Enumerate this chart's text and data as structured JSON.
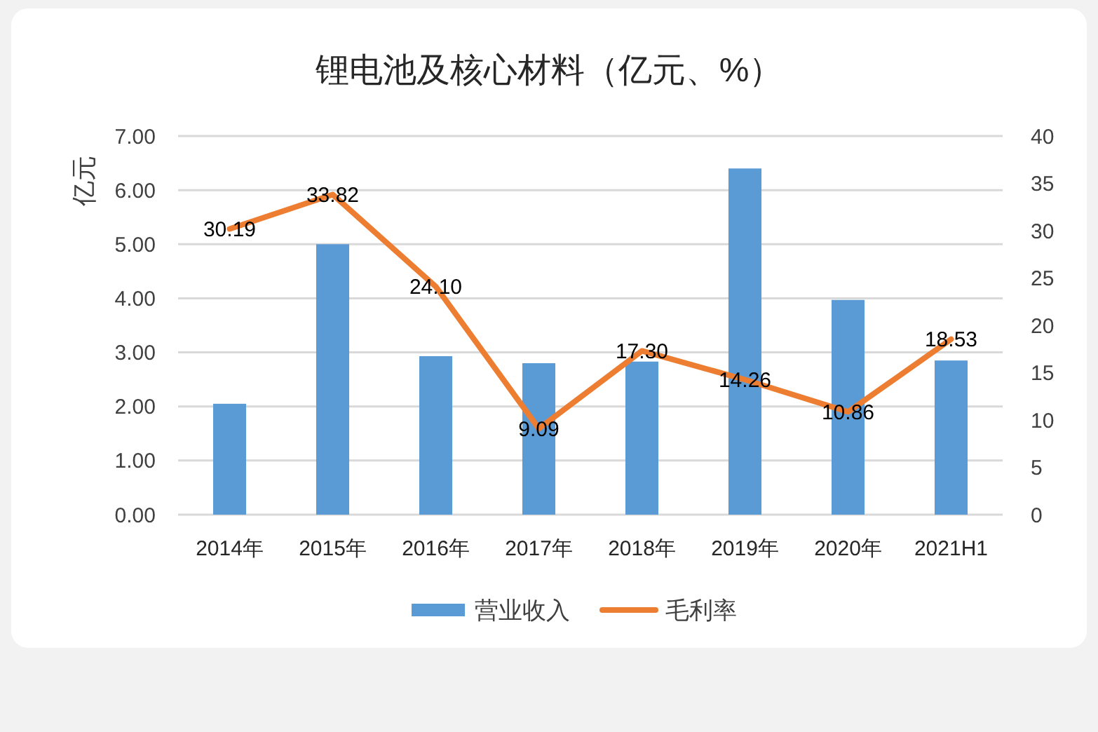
{
  "chart_data": {
    "type": "bar",
    "title": "锂电池及核心材料（亿元、%）",
    "ylabel": "亿元",
    "categories": [
      "2014年",
      "2015年",
      "2016年",
      "2017年",
      "2018年",
      "2019年",
      "2020年",
      "2021H1"
    ],
    "series": [
      {
        "name": "营业收入",
        "color": "#5b9bd5",
        "values": [
          2.05,
          5.0,
          2.93,
          2.8,
          2.83,
          6.4,
          3.97,
          2.85
        ]
      },
      {
        "name": "毛利率",
        "type": "line",
        "axis": "y2",
        "color": "#ed7d31",
        "values": [
          30.19,
          33.82,
          24.1,
          9.09,
          17.3,
          14.26,
          10.86,
          18.53
        ],
        "value_labels": [
          "30.19",
          "33.82",
          "24.10",
          "9.09",
          "17.30",
          "14.26",
          "10.86",
          "18.53"
        ]
      }
    ],
    "ylim": [
      0,
      7
    ],
    "yticks": [
      {
        "value": 0,
        "label": "0.00"
      },
      {
        "value": 1,
        "label": "1.00"
      },
      {
        "value": 2,
        "label": "2.00"
      },
      {
        "value": 3,
        "label": "3.00"
      },
      {
        "value": 4,
        "label": "4.00"
      },
      {
        "value": 5,
        "label": "5.00"
      },
      {
        "value": 6,
        "label": "6.00"
      },
      {
        "value": 7,
        "label": "7.00"
      }
    ],
    "y2lim": [
      0,
      40
    ],
    "y2ticks": [
      0,
      5,
      10,
      15,
      20,
      25,
      30,
      35,
      40
    ],
    "grid": "y",
    "legend": "bottom"
  }
}
